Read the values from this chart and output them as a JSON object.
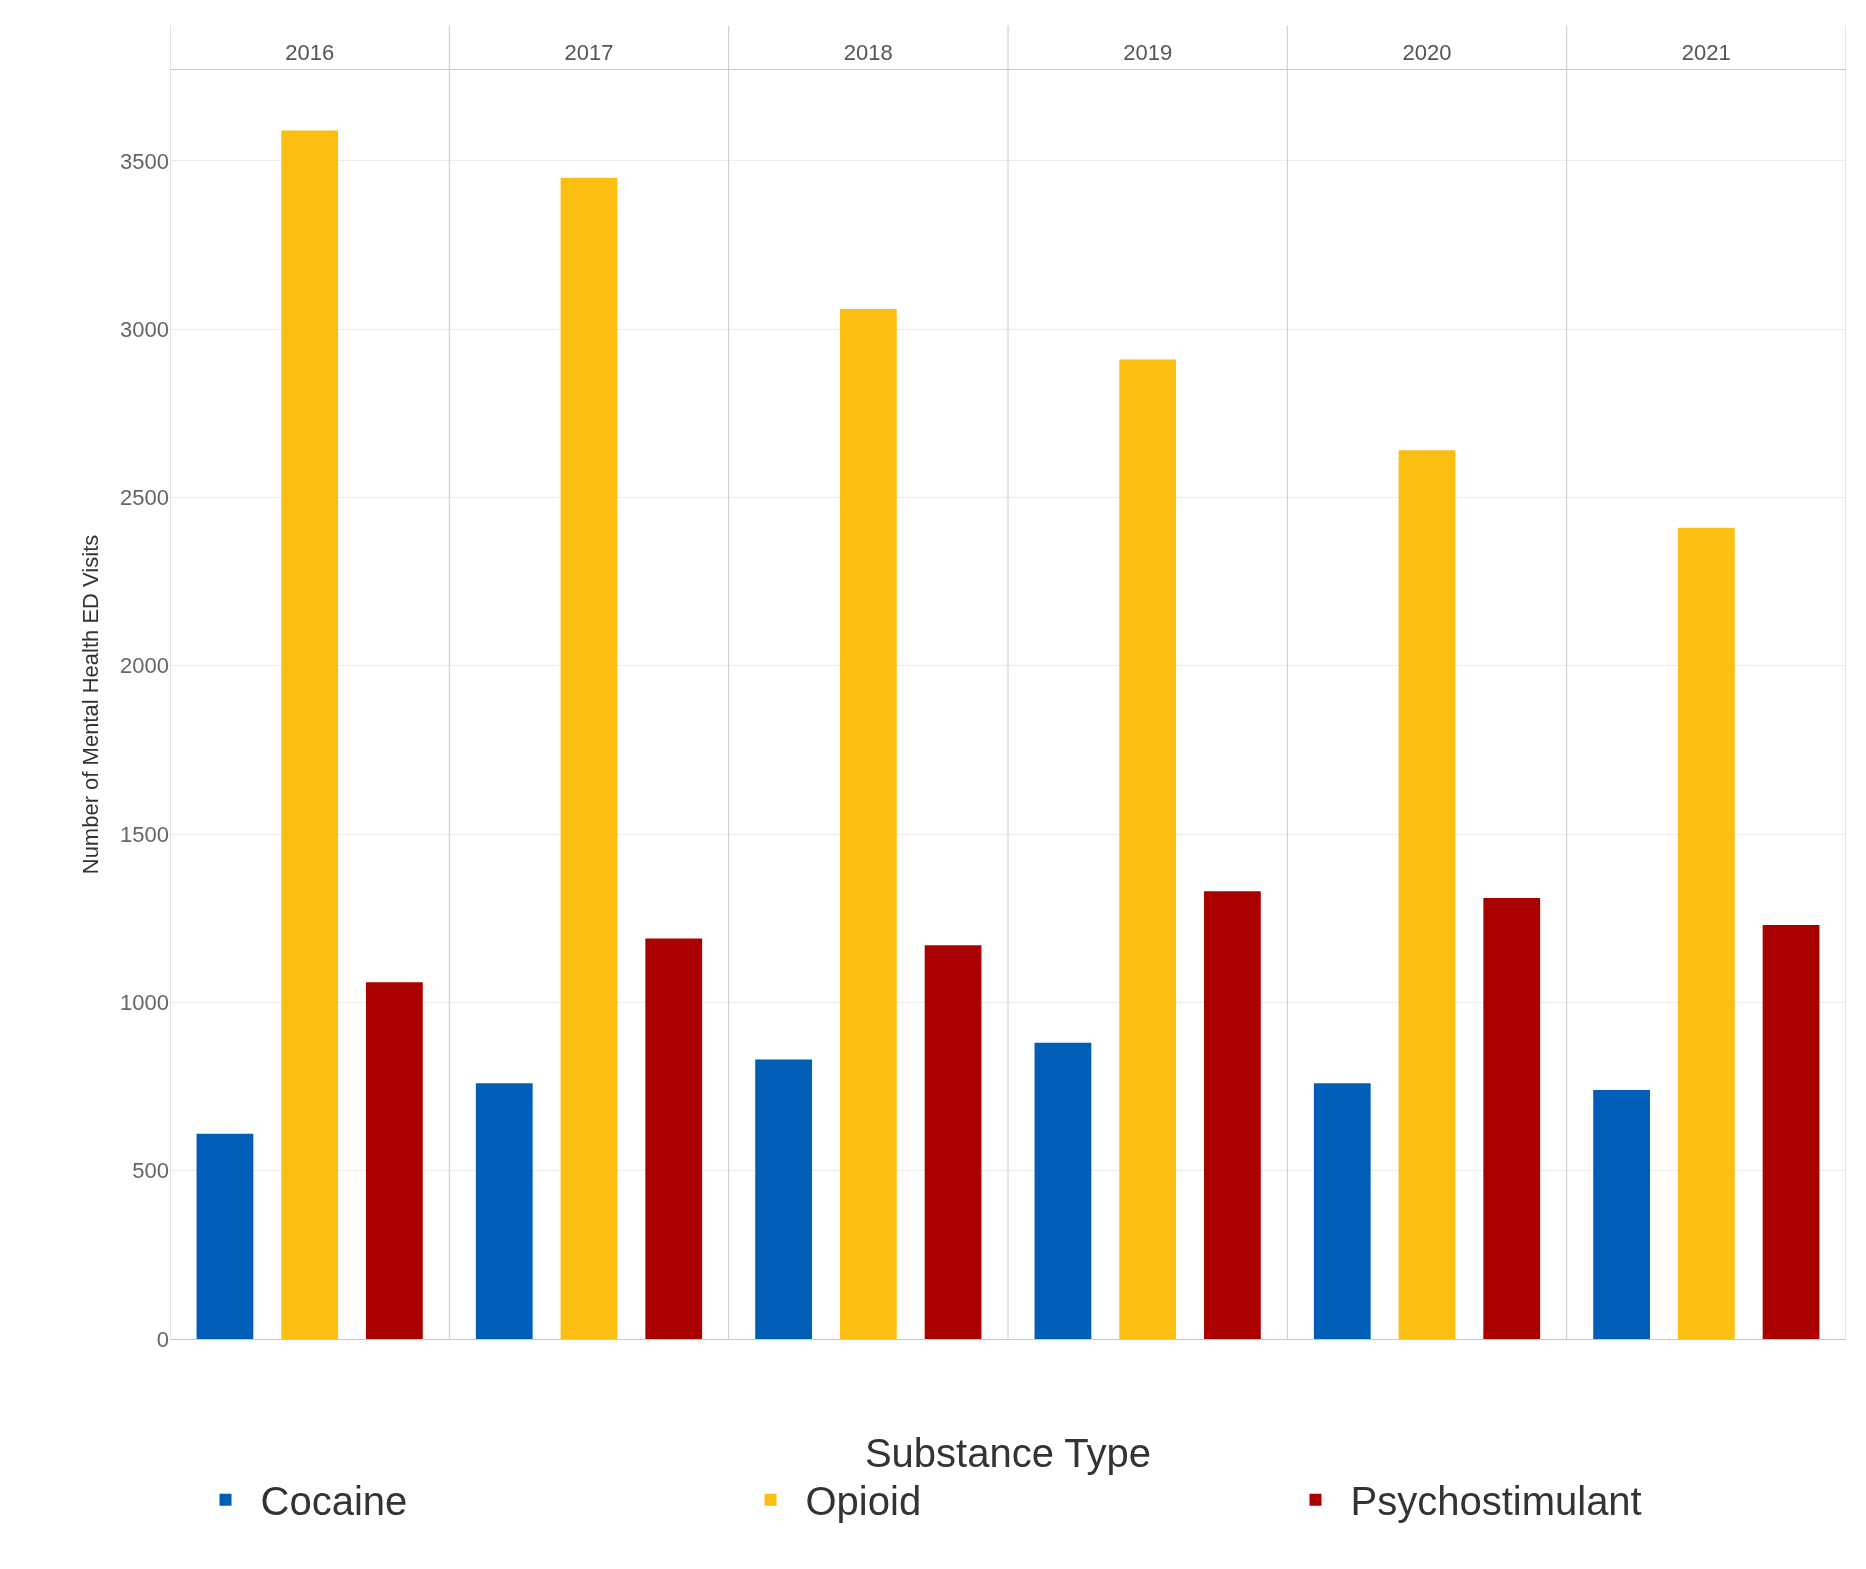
{
  "chart_data": {
    "type": "bar",
    "ylabel": "Number of Mental Health ED Visits",
    "legend_title": "Substance Type",
    "categories": [
      "2016",
      "2017",
      "2018",
      "2019",
      "2020",
      "2021"
    ],
    "series": [
      {
        "name": "Cocaine",
        "color": "#005eb8",
        "values": [
          610,
          760,
          830,
          880,
          760,
          740
        ]
      },
      {
        "name": "Opioid",
        "color": "#fdbe12",
        "values": [
          3590,
          3450,
          3060,
          2910,
          2640,
          2410
        ]
      },
      {
        "name": "Psychostimulant",
        "color": "#ab0000",
        "values": [
          1060,
          1190,
          1170,
          1330,
          1310,
          1230
        ]
      }
    ],
    "ylim": [
      0,
      3770
    ],
    "yticks": [
      0,
      500,
      1000,
      1500,
      2000,
      2500,
      3000,
      3500
    ],
    "grid": "y",
    "legend": "bottom"
  }
}
